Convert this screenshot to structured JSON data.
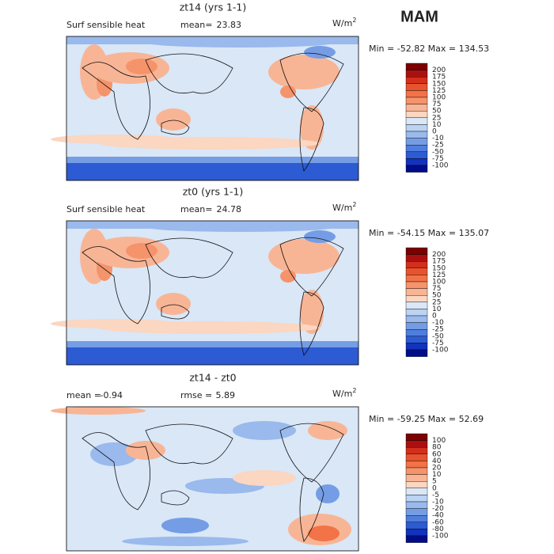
{
  "title": "MAM",
  "panels": [
    {
      "title": "zt14 (yrs 1-1)",
      "left_label": "Surf sensible heat",
      "stat1_label": "mean=",
      "stat1_value": "23.83",
      "stat2_label": null,
      "stat2_value": null,
      "units": "W/m",
      "units_sup": "2",
      "minmax": "Min = -52.82 Max = 134.53",
      "colorbar": {
        "labels": [
          "200",
          "175",
          "150",
          "125",
          "100",
          "75",
          "50",
          "25",
          "10",
          "0",
          "-10",
          "-25",
          "-50",
          "-75",
          "-100"
        ],
        "colors": [
          "#7b0000",
          "#ab1010",
          "#d32f1c",
          "#e8532e",
          "#f27347",
          "#f5936b",
          "#f8b595",
          "#fbd6c0",
          "#d9e7f7",
          "#bcd3f2",
          "#9ab9ec",
          "#759de5",
          "#4f7edd",
          "#2c5bd3",
          "#1133bd",
          "#000c8a"
        ]
      }
    },
    {
      "title": "zt0 (yrs 1-1)",
      "left_label": "Surf sensible heat",
      "stat1_label": "mean=",
      "stat1_value": "24.78",
      "stat2_label": null,
      "stat2_value": null,
      "units": "W/m",
      "units_sup": "2",
      "minmax": "Min = -54.15 Max = 135.07",
      "colorbar": {
        "labels": [
          "200",
          "175",
          "150",
          "125",
          "100",
          "75",
          "50",
          "25",
          "10",
          "0",
          "-10",
          "-25",
          "-50",
          "-75",
          "-100"
        ],
        "colors": [
          "#7b0000",
          "#ab1010",
          "#d32f1c",
          "#e8532e",
          "#f27347",
          "#f5936b",
          "#f8b595",
          "#fbd6c0",
          "#d9e7f7",
          "#bcd3f2",
          "#9ab9ec",
          "#759de5",
          "#4f7edd",
          "#2c5bd3",
          "#1133bd",
          "#000c8a"
        ]
      }
    },
    {
      "title": "zt14 - zt0",
      "left_label": null,
      "stat1_label": "mean =",
      "stat1_value": "-0.94",
      "stat2_label": "rmse =",
      "stat2_value": "5.89",
      "units": "W/m",
      "units_sup": "2",
      "minmax": "Min = -59.25 Max =  52.69",
      "colorbar": {
        "labels": [
          "100",
          "80",
          "60",
          "40",
          "20",
          "10",
          "5",
          "0",
          "-5",
          "-10",
          "-20",
          "-40",
          "-60",
          "-80",
          "-100"
        ],
        "colors": [
          "#7b0000",
          "#ab1010",
          "#d32f1c",
          "#e8532e",
          "#f27347",
          "#f5936b",
          "#f8b595",
          "#fbd6c0",
          "#d9e7f7",
          "#bcd3f2",
          "#9ab9ec",
          "#759de5",
          "#4f7edd",
          "#2c5bd3",
          "#1133bd",
          "#000c8a"
        ]
      }
    }
  ]
}
